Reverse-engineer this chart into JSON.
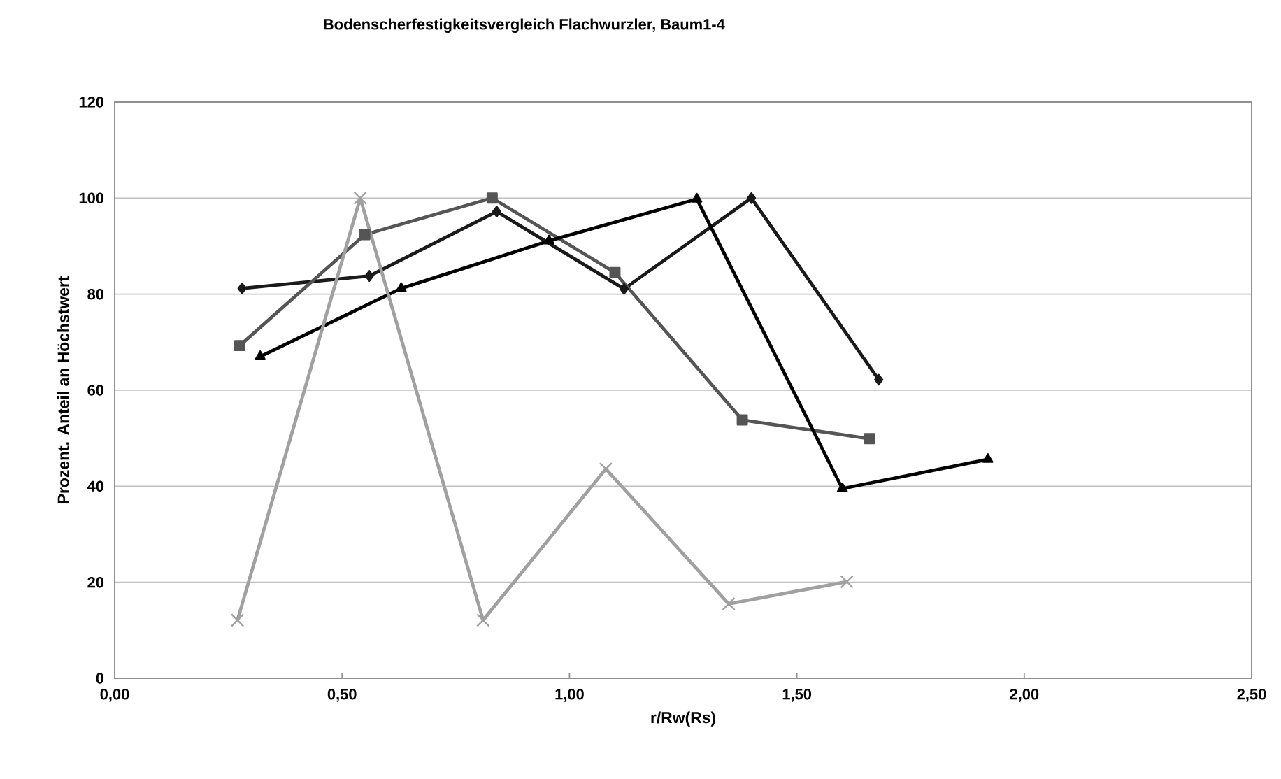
{
  "chart_data": {
    "type": "line",
    "title": "Bodenscherfestigkeitsvergleich  Flachwurzler, Baum1-4",
    "xlabel": "r/Rw(Rs)",
    "ylabel": "Prozent. Anteil an Höchstwert",
    "series": [
      {
        "color": "#1a1a1a",
        "marker": "diamond",
        "x": [
          0.28,
          0.56,
          0.84,
          1.12,
          1.4,
          1.68
        ],
        "values": [
          81.2,
          83.8,
          97.2,
          81.1,
          100,
          62.2
        ]
      },
      {
        "color": "#555555",
        "marker": "square",
        "x": [
          0.275,
          0.55,
          0.83,
          1.1,
          1.38,
          1.66
        ],
        "values": [
          69.3,
          92.4,
          100,
          84.5,
          53.8,
          49.9
        ]
      },
      {
        "color": "#000000",
        "marker": "triangle",
        "x": [
          0.32,
          0.63,
          0.955,
          1.28,
          1.6,
          1.92
        ],
        "values": [
          67.0,
          81.2,
          91.1,
          99.8,
          39.5,
          45.6
        ]
      },
      {
        "color": "#a0a0a0",
        "marker": "cross",
        "x": [
          0.27,
          0.54,
          0.81,
          1.08,
          1.35,
          1.61
        ],
        "values": [
          12.1,
          100,
          12.1,
          43.6,
          15.5,
          20.1
        ]
      }
    ],
    "xlim": [
      0,
      2.5
    ],
    "ylim": [
      0,
      120
    ],
    "xticks": [
      {
        "value": 0,
        "label": "0,00"
      },
      {
        "value": 0.5,
        "label": "0,50"
      },
      {
        "value": 1,
        "label": "1,00"
      },
      {
        "value": 1.5,
        "label": "1,50"
      },
      {
        "value": 2,
        "label": "2,00"
      },
      {
        "value": 2.5,
        "label": "2,50"
      }
    ],
    "yticks": [
      0,
      20,
      40,
      60,
      80,
      100,
      120
    ],
    "grid": "y",
    "line_style": "solid"
  }
}
